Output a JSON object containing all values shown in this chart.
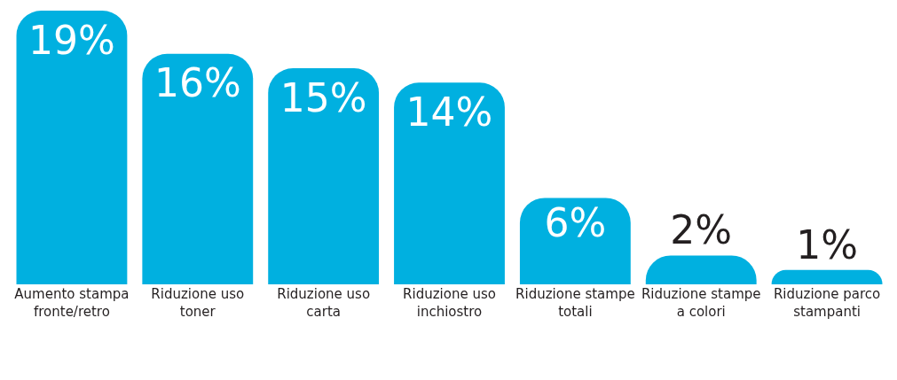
{
  "chart_data": {
    "type": "bar",
    "categories": [
      "Aumento stampa fronte/retro",
      "Riduzione uso toner",
      "Riduzione uso carta",
      "Riduzione uso inchiostro",
      "Riduzione stampe totali",
      "Riduzione stampe a colori",
      "Riduzione parco stampanti"
    ],
    "values": [
      19,
      16,
      15,
      14,
      6,
      2,
      1
    ],
    "value_labels": [
      "19%",
      "16%",
      "15%",
      "14%",
      "6%",
      "2%",
      "1%"
    ],
    "color": "#00b0e0"
  }
}
